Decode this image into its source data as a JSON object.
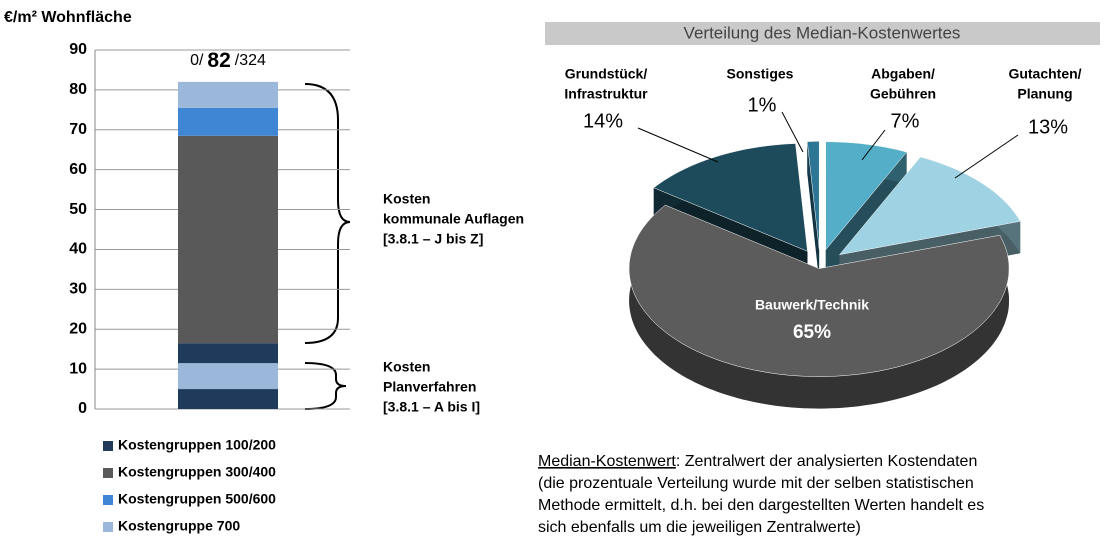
{
  "chart_data": [
    {
      "type": "stacked-bar",
      "y_label": "€/m² Wohnfläche",
      "top_label": {
        "min": "0/",
        "median": "82",
        "max": "/324"
      },
      "ylim": [
        0,
        90
      ],
      "yticks": [
        0,
        10,
        20,
        30,
        40,
        50,
        60,
        70,
        80,
        90
      ],
      "grid": true,
      "series": [
        {
          "name": "Kostengruppen 100/200",
          "color": "#203a5c",
          "values": [
            5,
            5
          ]
        },
        {
          "name": "Kostengruppen 300/400",
          "color": "#595959",
          "values": [
            0,
            52
          ]
        },
        {
          "name": "Kostengruppen 500/600",
          "color": "#3f86d4",
          "values": [
            0,
            7
          ]
        },
        {
          "name": "Kostengruppe 700",
          "color": "#9bb7da",
          "values": [
            6.5,
            6.5
          ]
        }
      ],
      "annotations": [
        [
          "Kosten",
          "Planverfahren",
          "[3.8.1 – A bis I]"
        ],
        [
          "Kosten",
          "kommunale Auflagen",
          "[3.8.1 – J bis Z]"
        ]
      ]
    },
    {
      "type": "pie3d",
      "title": "Verteilung des Median-Kostenwertes",
      "categories": [
        [
          "Abgaben/",
          "Gebühren"
        ],
        [
          "Gutachten/",
          "Planung"
        ],
        [
          "Bauwerk/Technik"
        ],
        [
          "Grundstück/",
          "Infrastruktur"
        ],
        [
          "Sonstiges"
        ]
      ],
      "values": [
        7,
        13,
        65,
        14,
        1
      ],
      "value_labels": [
        "7%",
        "13%",
        "65%",
        "14%",
        "1%"
      ],
      "colors": [
        "#55aec8",
        "#9fd2e2",
        "#5c5c5c",
        "#1e4b5c",
        "#2d7594"
      ],
      "note_term": "Median-Kostenwert",
      "note_lines": [
        ": Zentralwert der analysierten Kostendaten",
        "(die prozentuale Verteilung wurde mit der selben statistischen",
        "Methode ermittelt, d.h. bei den dargestellten Werten handelt es",
        "sich ebenfalls um die jeweiligen Zentralwerte)"
      ]
    }
  ]
}
